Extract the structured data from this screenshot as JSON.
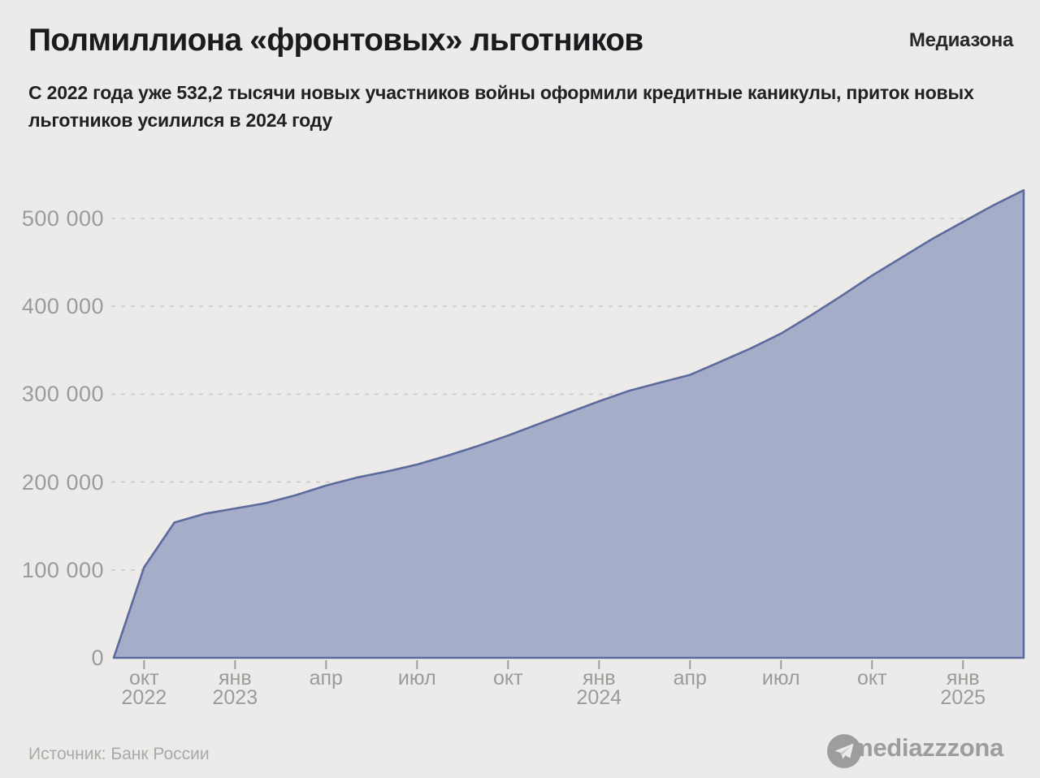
{
  "header": {
    "title": "Полмиллиона «фронтовых» льготников",
    "brand": "Медиазона",
    "subtitle": "С 2022 года уже 532,2 тысячи новых участников войны оформили кредитные каникулы, приток новых льготников усилился в 2024 году"
  },
  "footer": {
    "source": "Источник: Банк России",
    "handle": "@mediazzzona",
    "icon": "telegram-paper-plane"
  },
  "chart_data": {
    "type": "area",
    "title": "Полмиллиона «фронтовых» льготников",
    "subtitle": "С 2022 года уже 532,2 тысячи новых участников войны оформили кредитные каникулы, приток новых льготников усилился в 2024 году",
    "x": [
      "сен 2022",
      "окт 2022",
      "ноя 2022",
      "дек 2022",
      "янв 2023",
      "фев 2023",
      "мар 2023",
      "апр 2023",
      "май 2023",
      "июн 2023",
      "июл 2023",
      "авг 2023",
      "сен 2023",
      "окт 2023",
      "ноя 2023",
      "дек 2023",
      "янв 2024",
      "фев 2024",
      "мар 2024",
      "апр 2024",
      "май 2024",
      "июн 2024",
      "июл 2024",
      "авг 2024",
      "сен 2024",
      "окт 2024",
      "ноя 2024",
      "дек 2024",
      "янв 2025",
      "фев 2025",
      "мар 2025"
    ],
    "values": [
      0,
      103000,
      154000,
      164000,
      170000,
      176000,
      185000,
      196000,
      205000,
      212000,
      220000,
      230000,
      241000,
      253000,
      266000,
      279000,
      292000,
      304000,
      313000,
      322000,
      337000,
      352000,
      369000,
      390000,
      412000,
      435000,
      456000,
      477000,
      496000,
      515000,
      532200
    ],
    "final_value": 532200,
    "ylabel": "",
    "xlabel": "",
    "ylim": [
      0,
      545000
    ],
    "y_ticks": [
      {
        "value": 0,
        "label": "0"
      },
      {
        "value": 100000,
        "label": "100 000"
      },
      {
        "value": 200000,
        "label": "200 000"
      },
      {
        "value": 300000,
        "label": "300 000"
      },
      {
        "value": 400000,
        "label": "400 000"
      },
      {
        "value": 500000,
        "label": "500 000"
      }
    ],
    "x_ticks": [
      {
        "index": 1,
        "month": "окт",
        "year": "2022"
      },
      {
        "index": 4,
        "month": "янв",
        "year": "2023"
      },
      {
        "index": 7,
        "month": "апр",
        "year": ""
      },
      {
        "index": 10,
        "month": "июл",
        "year": ""
      },
      {
        "index": 13,
        "month": "окт",
        "year": ""
      },
      {
        "index": 16,
        "month": "янв",
        "year": "2024"
      },
      {
        "index": 19,
        "month": "апр",
        "year": ""
      },
      {
        "index": 22,
        "month": "июл",
        "year": ""
      },
      {
        "index": 25,
        "month": "окт",
        "year": ""
      },
      {
        "index": 28,
        "month": "янв",
        "year": "2025"
      }
    ],
    "grid": "horizontal-dashed",
    "legend": "none",
    "colors": {
      "background": "#ecebe9",
      "area_fill": "#a5adc8",
      "line": "#5c6a9d",
      "grid": "#c9c9c6",
      "axis_text": "#9b9b99",
      "tick_mark": "#9e9e9c",
      "title_text": "#1b1b1f",
      "footer_text": "#a9a9a7"
    }
  }
}
